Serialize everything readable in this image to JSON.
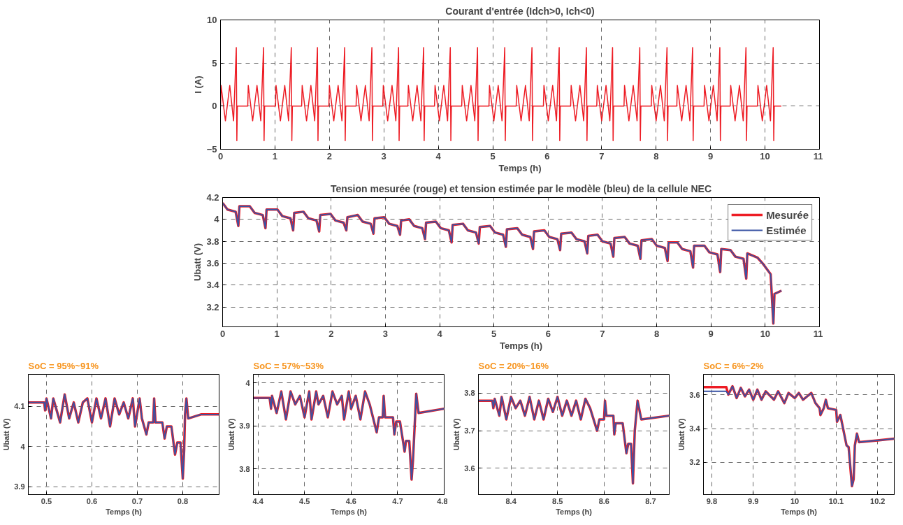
{
  "chart_data": [
    {
      "type": "line",
      "title": "Courant d'entrée (Idch>0, Ich<0)",
      "xlabel": "Temps (h)",
      "ylabel": "I (A)",
      "xlim": [
        0,
        11
      ],
      "ylim": [
        -5,
        10
      ],
      "xticks": [
        0,
        1,
        2,
        3,
        4,
        5,
        6,
        7,
        8,
        9,
        10,
        11
      ],
      "yticks": [
        -5,
        0,
        5,
        10
      ],
      "grid": true,
      "x": [
        0,
        0.01,
        0.09,
        0.17,
        0.24,
        0.29,
        0.3,
        0.31,
        0.5,
        0.51,
        0.59,
        0.67,
        0.74,
        0.79,
        0.8,
        0.81,
        1.01,
        1.02,
        1.1,
        1.18,
        1.25,
        1.3,
        1.31,
        1.32,
        1.49,
        1.5,
        1.58,
        1.66,
        1.73,
        1.78,
        1.79,
        1.8,
        1.99,
        2.0,
        2.08,
        2.16,
        2.23,
        2.28,
        2.29,
        2.3,
        2.49,
        2.5,
        2.58,
        2.66,
        2.73,
        2.78,
        2.79,
        2.8,
        2.98,
        2.99,
        3.07,
        3.15,
        3.22,
        3.27,
        3.28,
        3.29,
        3.44,
        3.45,
        3.53,
        3.61,
        3.68,
        3.73,
        3.74,
        3.75,
        3.93,
        3.94,
        4.02,
        4.1,
        4.17,
        4.22,
        4.23,
        4.24,
        4.43,
        4.44,
        4.52,
        4.6,
        4.67,
        4.72,
        4.73,
        4.74,
        4.93,
        4.94,
        5.02,
        5.1,
        5.17,
        5.22,
        5.23,
        5.24,
        5.43,
        5.44,
        5.52,
        5.6,
        5.67,
        5.72,
        5.73,
        5.74,
        5.93,
        5.94,
        6.02,
        6.1,
        6.17,
        6.22,
        6.23,
        6.24,
        6.43,
        6.44,
        6.52,
        6.6,
        6.67,
        6.72,
        6.73,
        6.74,
        6.91,
        6.92,
        7.0,
        7.08,
        7.15,
        7.2,
        7.21,
        7.22,
        7.41,
        7.42,
        7.5,
        7.58,
        7.65,
        7.7,
        7.71,
        7.72,
        7.91,
        7.92,
        8.0,
        8.08,
        8.15,
        8.2,
        8.21,
        8.22,
        8.38,
        8.39,
        8.47,
        8.55,
        8.62,
        8.67,
        8.68,
        8.69,
        8.88,
        8.89,
        8.97,
        9.05,
        9.12,
        9.17,
        9.18,
        9.19,
        9.36,
        9.37,
        9.45,
        9.53,
        9.6,
        9.65,
        9.66,
        9.67,
        9.86,
        9.87,
        9.95,
        10.03,
        10.1,
        10.15,
        10.16,
        10.17,
        10.3
      ],
      "series": [
        {
          "color": "#ed1c24",
          "values": [
            0,
            2.4,
            -1.7,
            2.4,
            -1.7,
            6.8,
            -4,
            0,
            0,
            2.4,
            -1.7,
            2.4,
            -1.7,
            6.8,
            -4,
            0,
            0,
            2.4,
            -1.7,
            2.4,
            -1.7,
            6.8,
            -4,
            0,
            0,
            2.4,
            -1.7,
            2.4,
            -1.7,
            6.8,
            -4,
            0,
            0,
            2.4,
            -1.7,
            2.4,
            -1.7,
            6.8,
            -4,
            0,
            0,
            2.4,
            -1.7,
            2.4,
            -1.7,
            6.8,
            -4,
            0,
            0,
            2.4,
            -1.7,
            2.4,
            -1.7,
            6.8,
            -4,
            0,
            0,
            2.4,
            -1.7,
            2.4,
            -1.7,
            6.8,
            -4,
            0,
            0,
            2.4,
            -1.7,
            2.4,
            -1.7,
            6.8,
            -4,
            0,
            0,
            2.4,
            -1.7,
            2.4,
            -1.7,
            6.8,
            -4,
            0,
            0,
            2.4,
            -1.7,
            2.4,
            -1.7,
            6.8,
            -4,
            0,
            0,
            2.4,
            -1.7,
            2.4,
            -1.7,
            6.8,
            -4,
            0,
            0,
            2.4,
            -1.7,
            2.4,
            -1.7,
            6.8,
            -4,
            0,
            0,
            2.4,
            -1.7,
            2.4,
            -1.7,
            6.8,
            -4,
            0,
            0,
            2.4,
            -1.7,
            2.4,
            -1.7,
            6.8,
            -4,
            0,
            0,
            2.4,
            -1.7,
            2.4,
            -1.7,
            6.8,
            -4,
            0,
            0,
            2.4,
            -1.7,
            2.4,
            -1.7,
            6.8,
            -4,
            0,
            0,
            2.4,
            -1.7,
            2.4,
            -1.7,
            6.8,
            -4,
            0,
            0,
            2.4,
            -1.7,
            2.4,
            -1.7,
            6.8,
            -4,
            0,
            0,
            2.4,
            -1.7,
            2.4,
            -1.7,
            6.8,
            -4,
            0,
            0,
            2.4,
            -1.7,
            2.4,
            -1.7,
            6.8,
            -4,
            0,
            0
          ]
        }
      ]
    },
    {
      "type": "line",
      "title": "Tension mesurée (rouge) et tension estimée par le modèle (bleu) de la cellule NEC",
      "xlabel": "Temps (h)",
      "ylabel": "Ubatt (V)",
      "xlim": [
        0,
        11
      ],
      "ylim": [
        3.02,
        4.2
      ],
      "xticks": [
        0,
        1,
        2,
        3,
        4,
        5,
        6,
        7,
        8,
        9,
        10,
        11
      ],
      "yticks": [
        3.2,
        3.4,
        3.6,
        3.8,
        4,
        4.2
      ],
      "grid": true,
      "legend": "top right",
      "x": [
        0,
        0.09,
        0.24,
        0.29,
        0.31,
        0.5,
        0.59,
        0.74,
        0.79,
        0.81,
        1.01,
        1.1,
        1.25,
        1.3,
        1.32,
        1.49,
        1.58,
        1.73,
        1.78,
        1.8,
        1.99,
        2.08,
        2.23,
        2.28,
        2.3,
        2.49,
        2.58,
        2.73,
        2.78,
        2.8,
        2.98,
        3.07,
        3.22,
        3.27,
        3.29,
        3.44,
        3.53,
        3.68,
        3.73,
        3.75,
        3.93,
        4.02,
        4.17,
        4.22,
        4.24,
        4.43,
        4.52,
        4.67,
        4.72,
        4.74,
        4.93,
        5.02,
        5.17,
        5.22,
        5.24,
        5.43,
        5.52,
        5.67,
        5.72,
        5.74,
        5.93,
        6.02,
        6.17,
        6.22,
        6.24,
        6.43,
        6.52,
        6.67,
        6.72,
        6.74,
        6.91,
        7.0,
        7.15,
        7.2,
        7.22,
        7.41,
        7.5,
        7.65,
        7.7,
        7.72,
        7.91,
        8.0,
        8.15,
        8.2,
        8.22,
        8.38,
        8.47,
        8.62,
        8.67,
        8.69,
        8.88,
        8.97,
        9.12,
        9.17,
        9.19,
        9.36,
        9.45,
        9.6,
        9.65,
        9.67,
        9.86,
        9.95,
        10.1,
        10.15,
        10.17,
        10.3
      ],
      "series": [
        {
          "name": "Mesurée",
          "color": "#ed1c24",
          "values": [
            4.15,
            4.09,
            4.07,
            3.94,
            4.12,
            4.12,
            4.06,
            4.04,
            3.92,
            4.09,
            4.09,
            4.03,
            4.01,
            3.9,
            4.06,
            4.07,
            4.01,
            3.99,
            3.89,
            4.04,
            4.05,
            3.99,
            3.97,
            3.9,
            4.02,
            4.04,
            3.98,
            3.96,
            3.87,
            4.01,
            4.02,
            3.96,
            3.94,
            3.86,
            3.99,
            4.0,
            3.94,
            3.92,
            3.82,
            3.97,
            3.98,
            3.92,
            3.9,
            3.79,
            3.95,
            3.96,
            3.9,
            3.88,
            3.78,
            3.93,
            3.94,
            3.88,
            3.86,
            3.75,
            3.91,
            3.92,
            3.86,
            3.84,
            3.73,
            3.89,
            3.9,
            3.84,
            3.82,
            3.72,
            3.87,
            3.88,
            3.82,
            3.8,
            3.69,
            3.85,
            3.86,
            3.8,
            3.78,
            3.66,
            3.83,
            3.84,
            3.78,
            3.76,
            3.64,
            3.81,
            3.82,
            3.76,
            3.74,
            3.62,
            3.79,
            3.79,
            3.73,
            3.71,
            3.56,
            3.76,
            3.76,
            3.7,
            3.68,
            3.52,
            3.73,
            3.72,
            3.66,
            3.64,
            3.46,
            3.69,
            3.65,
            3.6,
            3.5,
            3.05,
            3.32,
            3.35
          ]
        },
        {
          "name": "Estimée",
          "color": "#3953a4",
          "values": [
            4.15,
            4.09,
            4.07,
            3.94,
            4.12,
            4.12,
            4.06,
            4.04,
            3.92,
            4.09,
            4.09,
            4.03,
            4.01,
            3.9,
            4.06,
            4.07,
            4.01,
            3.99,
            3.89,
            4.04,
            4.05,
            3.99,
            3.97,
            3.9,
            4.02,
            4.04,
            3.98,
            3.96,
            3.87,
            4.01,
            4.02,
            3.96,
            3.94,
            3.86,
            3.99,
            4.0,
            3.94,
            3.92,
            3.82,
            3.97,
            3.98,
            3.92,
            3.9,
            3.79,
            3.95,
            3.96,
            3.9,
            3.88,
            3.78,
            3.93,
            3.94,
            3.88,
            3.86,
            3.75,
            3.91,
            3.92,
            3.86,
            3.84,
            3.73,
            3.89,
            3.9,
            3.84,
            3.82,
            3.72,
            3.87,
            3.88,
            3.82,
            3.8,
            3.69,
            3.85,
            3.86,
            3.8,
            3.78,
            3.66,
            3.83,
            3.84,
            3.78,
            3.76,
            3.64,
            3.81,
            3.82,
            3.76,
            3.74,
            3.62,
            3.79,
            3.79,
            3.73,
            3.71,
            3.56,
            3.76,
            3.76,
            3.7,
            3.68,
            3.52,
            3.73,
            3.72,
            3.66,
            3.64,
            3.46,
            3.69,
            3.65,
            3.6,
            3.5,
            3.05,
            3.32,
            3.35
          ]
        }
      ]
    },
    {
      "type": "line",
      "title": "SoC = 95%~91%",
      "xlabel": "Temps (h)",
      "ylabel": "Ubatt (V)",
      "xlim": [
        0.46,
        0.88
      ],
      "ylim": [
        3.88,
        4.18
      ],
      "xticks": [
        0.5,
        0.6,
        0.7,
        0.8
      ],
      "yticks": [
        3.9,
        4,
        4.1
      ],
      "grid": true,
      "x": [
        0.46,
        0.495,
        0.497,
        0.5,
        0.51,
        0.515,
        0.53,
        0.54,
        0.55,
        0.56,
        0.57,
        0.58,
        0.59,
        0.6,
        0.61,
        0.62,
        0.63,
        0.64,
        0.65,
        0.66,
        0.67,
        0.68,
        0.69,
        0.695,
        0.705,
        0.71,
        0.72,
        0.725,
        0.735,
        0.737,
        0.74,
        0.755,
        0.76,
        0.765,
        0.775,
        0.783,
        0.788,
        0.795,
        0.8,
        0.803,
        0.805,
        0.808,
        0.812,
        0.84,
        0.88
      ],
      "series": [
        {
          "color": "#ed1c24",
          "values": [
            4.11,
            4.11,
            4.09,
            4.12,
            4.07,
            4.12,
            4.06,
            4.13,
            4.07,
            4.11,
            4.06,
            4.11,
            4.12,
            4.06,
            4.12,
            4.07,
            4.12,
            4.05,
            4.12,
            4.08,
            4.11,
            4.07,
            4.12,
            4.05,
            4.12,
            4.07,
            4.03,
            4.06,
            4.06,
            4.12,
            4.06,
            4.06,
            4.02,
            4.05,
            4.05,
            3.98,
            4.01,
            4.01,
            3.92,
            3.99,
            4.08,
            4.12,
            4.07,
            4.08,
            4.08
          ]
        },
        {
          "color": "#3953a4",
          "values": [
            4.11,
            4.11,
            4.09,
            4.12,
            4.07,
            4.12,
            4.06,
            4.13,
            4.07,
            4.11,
            4.06,
            4.11,
            4.12,
            4.06,
            4.12,
            4.07,
            4.12,
            4.05,
            4.12,
            4.08,
            4.11,
            4.07,
            4.12,
            4.05,
            4.12,
            4.07,
            4.03,
            4.06,
            4.06,
            4.12,
            4.06,
            4.06,
            4.02,
            4.05,
            4.05,
            3.98,
            4.01,
            4.01,
            3.92,
            3.99,
            4.08,
            4.12,
            4.07,
            4.08,
            4.08
          ]
        }
      ]
    },
    {
      "type": "line",
      "title": "SoC = 57%~53%",
      "xlabel": "Temps (h)",
      "ylabel": "Ubatt (V)",
      "xlim": [
        4.39,
        4.8
      ],
      "ylim": [
        3.74,
        4.02
      ],
      "xticks": [
        4.4,
        4.5,
        4.6,
        4.7,
        4.8
      ],
      "yticks": [
        3.8,
        3.9,
        4
      ],
      "grid": true,
      "x": [
        4.39,
        4.425,
        4.428,
        4.43,
        4.44,
        4.45,
        4.46,
        4.47,
        4.48,
        4.49,
        4.5,
        4.51,
        4.515,
        4.525,
        4.53,
        4.54,
        4.55,
        4.56,
        4.57,
        4.58,
        4.585,
        4.595,
        4.6,
        4.61,
        4.62,
        4.63,
        4.64,
        4.655,
        4.66,
        4.668,
        4.67,
        4.673,
        4.69,
        4.693,
        4.697,
        4.705,
        4.715,
        4.718,
        4.725,
        4.73,
        4.733,
        4.74,
        4.745,
        4.8
      ],
      "series": [
        {
          "color": "#ed1c24",
          "values": [
            3.965,
            3.965,
            3.94,
            3.97,
            3.93,
            3.98,
            3.915,
            3.98,
            3.95,
            3.97,
            3.92,
            3.98,
            3.915,
            3.98,
            3.95,
            3.97,
            3.92,
            3.98,
            3.95,
            3.97,
            3.915,
            3.98,
            3.94,
            3.97,
            3.915,
            3.98,
            3.95,
            3.885,
            3.92,
            3.92,
            3.97,
            3.92,
            3.92,
            3.88,
            3.91,
            3.91,
            3.84,
            3.865,
            3.865,
            3.775,
            3.82,
            3.975,
            3.93,
            3.94
          ]
        },
        {
          "color": "#3953a4",
          "values": [
            3.965,
            3.965,
            3.94,
            3.97,
            3.93,
            3.98,
            3.915,
            3.98,
            3.95,
            3.97,
            3.92,
            3.98,
            3.915,
            3.98,
            3.95,
            3.97,
            3.92,
            3.98,
            3.95,
            3.97,
            3.915,
            3.98,
            3.94,
            3.97,
            3.915,
            3.98,
            3.95,
            3.885,
            3.92,
            3.92,
            3.97,
            3.92,
            3.92,
            3.88,
            3.91,
            3.91,
            3.84,
            3.865,
            3.865,
            3.775,
            3.82,
            3.975,
            3.93,
            3.94
          ]
        }
      ]
    },
    {
      "type": "line",
      "title": "SoC = 20%~16%",
      "xlabel": "Temps (h)",
      "ylabel": "Ubatt (V)",
      "xlim": [
        8.33,
        8.74
      ],
      "ylim": [
        3.53,
        3.85
      ],
      "xticks": [
        8.4,
        8.5,
        8.6,
        8.7
      ],
      "yticks": [
        3.6,
        3.7,
        3.8
      ],
      "grid": true,
      "x": [
        8.33,
        8.36,
        8.362,
        8.365,
        8.375,
        8.38,
        8.39,
        8.4,
        8.41,
        8.42,
        8.43,
        8.44,
        8.45,
        8.46,
        8.47,
        8.48,
        8.49,
        8.5,
        8.51,
        8.52,
        8.53,
        8.54,
        8.55,
        8.56,
        8.57,
        8.585,
        8.59,
        8.6,
        8.602,
        8.605,
        8.62,
        8.622,
        8.625,
        8.64,
        8.648,
        8.652,
        8.658,
        8.662,
        8.666,
        8.672,
        8.68,
        8.74
      ],
      "series": [
        {
          "color": "#ed1c24",
          "values": [
            3.78,
            3.78,
            3.76,
            3.785,
            3.74,
            3.79,
            3.73,
            3.79,
            3.76,
            3.78,
            3.74,
            3.79,
            3.73,
            3.78,
            3.73,
            3.785,
            3.75,
            3.79,
            3.74,
            3.78,
            3.74,
            3.78,
            3.73,
            3.785,
            3.76,
            3.7,
            3.73,
            3.73,
            3.78,
            3.74,
            3.74,
            3.69,
            3.72,
            3.72,
            3.64,
            3.665,
            3.665,
            3.56,
            3.7,
            3.78,
            3.73,
            3.74
          ]
        },
        {
          "color": "#3953a4",
          "values": [
            3.78,
            3.78,
            3.76,
            3.785,
            3.74,
            3.79,
            3.73,
            3.79,
            3.76,
            3.78,
            3.74,
            3.79,
            3.73,
            3.78,
            3.73,
            3.785,
            3.75,
            3.79,
            3.74,
            3.78,
            3.74,
            3.78,
            3.73,
            3.785,
            3.76,
            3.7,
            3.73,
            3.73,
            3.78,
            3.74,
            3.74,
            3.69,
            3.72,
            3.72,
            3.64,
            3.665,
            3.665,
            3.56,
            3.7,
            3.78,
            3.73,
            3.74
          ]
        }
      ]
    },
    {
      "type": "line",
      "title": "SoC = 6%~2%",
      "xlabel": "Temps (h)",
      "ylabel": "Ubatt (V)",
      "xlim": [
        9.78,
        10.24
      ],
      "ylim": [
        3.01,
        3.72
      ],
      "xticks": [
        9.8,
        9.9,
        10,
        10.1,
        10.2
      ],
      "yticks": [
        3.2,
        3.4,
        3.6
      ],
      "grid": true,
      "x": [
        9.78,
        9.835,
        9.84,
        9.85,
        9.86,
        9.87,
        9.88,
        9.89,
        9.9,
        9.91,
        9.92,
        9.93,
        9.95,
        9.96,
        9.975,
        9.985,
        10.0,
        10.01,
        10.02,
        10.03,
        10.04,
        10.05,
        10.06,
        10.062,
        10.07,
        10.075,
        10.08,
        10.1,
        10.102,
        10.11,
        10.125,
        10.13,
        10.138,
        10.142,
        10.145,
        10.15,
        10.155,
        10.2,
        10.24
      ],
      "series": [
        {
          "color": "#ed1c24",
          "values": [
            3.645,
            3.645,
            3.6,
            3.65,
            3.58,
            3.64,
            3.59,
            3.63,
            3.57,
            3.63,
            3.57,
            3.62,
            3.57,
            3.62,
            3.55,
            3.61,
            3.58,
            3.61,
            3.57,
            3.59,
            3.61,
            3.55,
            3.52,
            3.48,
            3.52,
            3.57,
            3.52,
            3.51,
            3.44,
            3.48,
            3.3,
            3.29,
            3.06,
            3.1,
            3.3,
            3.37,
            3.32,
            3.33,
            3.34
          ]
        },
        {
          "color": "#3953a4",
          "values": [
            3.62,
            3.62,
            3.6,
            3.65,
            3.58,
            3.64,
            3.59,
            3.63,
            3.57,
            3.63,
            3.57,
            3.62,
            3.57,
            3.62,
            3.55,
            3.61,
            3.58,
            3.61,
            3.57,
            3.59,
            3.61,
            3.55,
            3.52,
            3.48,
            3.52,
            3.57,
            3.52,
            3.51,
            3.44,
            3.48,
            3.3,
            3.29,
            3.06,
            3.1,
            3.3,
            3.37,
            3.32,
            3.33,
            3.34
          ]
        }
      ]
    }
  ]
}
